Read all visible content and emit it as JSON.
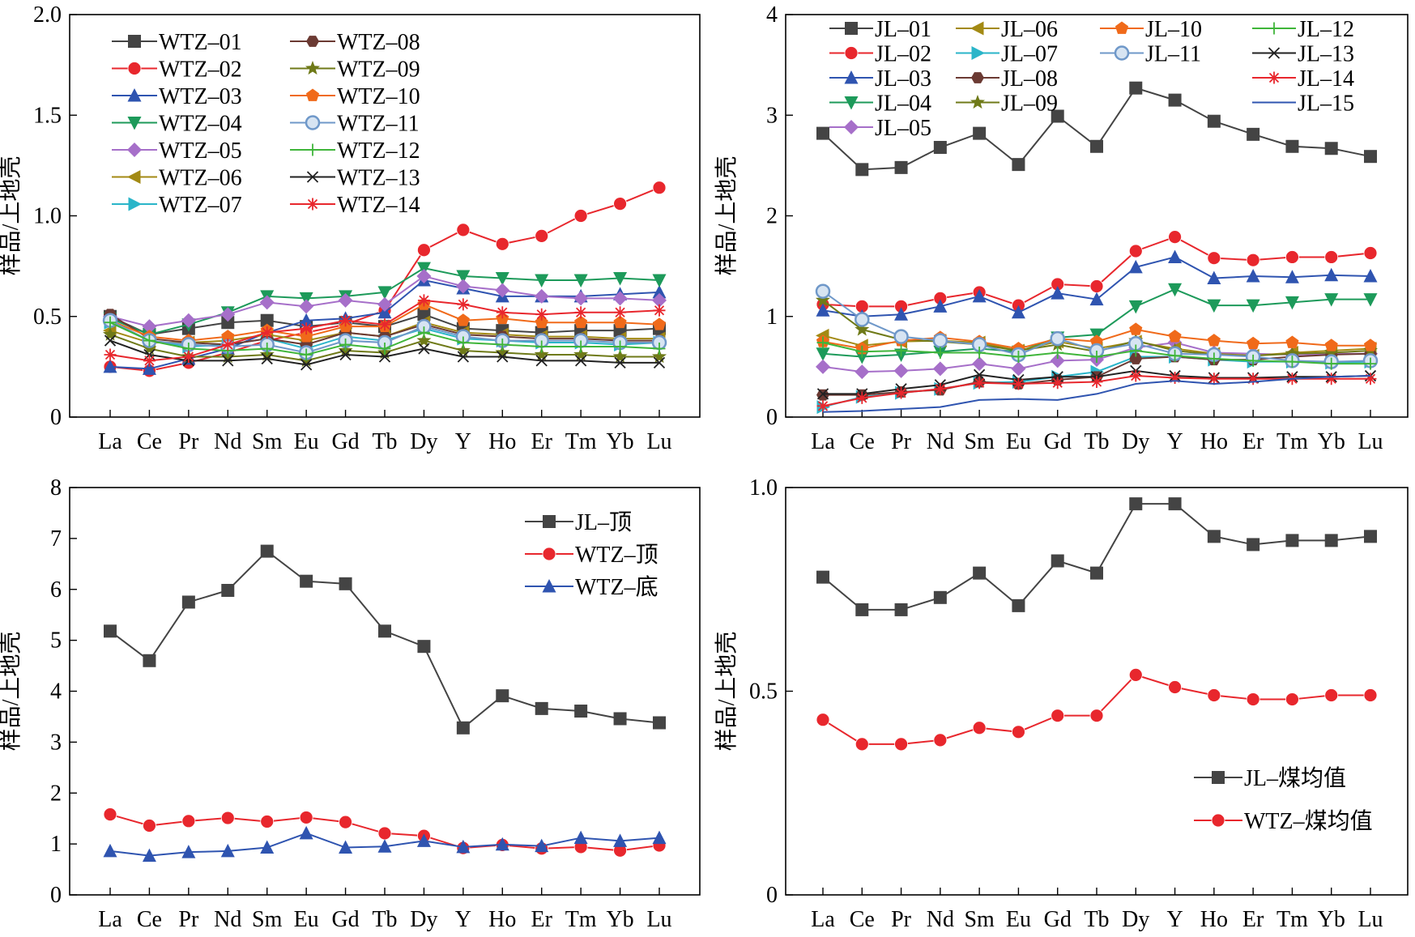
{
  "chart_data": [
    {
      "type": "line",
      "panel": "top-left",
      "ylabel": "样品/上地壳",
      "xlabel": "",
      "ylim": [
        0,
        2.0
      ],
      "yticks": [
        0,
        0.5,
        1.0,
        1.5,
        2.0
      ],
      "ytick_labels": [
        "0",
        "0.5",
        "1.0",
        "1.5",
        "2.0"
      ],
      "grid": false,
      "legend_position": "top-left",
      "categories": [
        "La",
        "Ce",
        "Pr",
        "Nd",
        "Sm",
        "Eu",
        "Gd",
        "Tb",
        "Dy",
        "Y",
        "Ho",
        "Er",
        "Tm",
        "Yb",
        "Lu"
      ],
      "series": [
        {
          "name": "WTZ–01",
          "color": "#444444",
          "marker": "square",
          "values": [
            0.5,
            0.41,
            0.44,
            0.47,
            0.48,
            0.45,
            0.47,
            0.45,
            0.51,
            0.44,
            0.43,
            0.42,
            0.43,
            0.43,
            0.44
          ]
        },
        {
          "name": "WTZ–02",
          "color": "#e8272d",
          "marker": "circle",
          "values": [
            0.25,
            0.23,
            0.27,
            0.32,
            0.38,
            0.42,
            0.46,
            0.53,
            0.83,
            0.93,
            0.86,
            0.9,
            1.0,
            1.06,
            1.14
          ]
        },
        {
          "name": "WTZ–03",
          "color": "#2f54b0",
          "marker": "triangle-up",
          "values": [
            0.25,
            0.24,
            0.29,
            0.34,
            0.42,
            0.48,
            0.49,
            0.52,
            0.68,
            0.64,
            0.6,
            0.6,
            0.6,
            0.61,
            0.62
          ]
        },
        {
          "name": "WTZ–04",
          "color": "#1d9a5a",
          "marker": "triangle-down",
          "values": [
            0.49,
            0.41,
            0.46,
            0.52,
            0.6,
            0.59,
            0.6,
            0.62,
            0.74,
            0.7,
            0.69,
            0.68,
            0.68,
            0.69,
            0.68
          ]
        },
        {
          "name": "WTZ–05",
          "color": "#a66fc9",
          "marker": "diamond",
          "values": [
            0.5,
            0.45,
            0.48,
            0.51,
            0.57,
            0.55,
            0.58,
            0.56,
            0.7,
            0.65,
            0.63,
            0.6,
            0.59,
            0.59,
            0.58
          ]
        },
        {
          "name": "WTZ–06",
          "color": "#a38a14",
          "marker": "triangle-left",
          "values": [
            0.43,
            0.37,
            0.37,
            0.38,
            0.41,
            0.38,
            0.42,
            0.4,
            0.47,
            0.42,
            0.41,
            0.4,
            0.4,
            0.39,
            0.39
          ]
        },
        {
          "name": "WTZ–07",
          "color": "#2ab5c9",
          "marker": "triangle-right",
          "values": [
            0.47,
            0.38,
            0.35,
            0.36,
            0.39,
            0.34,
            0.4,
            0.38,
            0.44,
            0.39,
            0.38,
            0.37,
            0.37,
            0.36,
            0.37
          ]
        },
        {
          "name": "WTZ–08",
          "color": "#6b3a33",
          "marker": "hexagon",
          "values": [
            0.51,
            0.39,
            0.37,
            0.36,
            0.39,
            0.36,
            0.42,
            0.4,
            0.46,
            0.41,
            0.4,
            0.39,
            0.39,
            0.38,
            0.38
          ]
        },
        {
          "name": "WTZ–09",
          "color": "#6f7a18",
          "marker": "star",
          "values": [
            0.41,
            0.34,
            0.3,
            0.3,
            0.31,
            0.28,
            0.33,
            0.32,
            0.38,
            0.33,
            0.32,
            0.31,
            0.31,
            0.3,
            0.3
          ]
        },
        {
          "name": "WTZ–10",
          "color": "#f06a1a",
          "marker": "pentagon",
          "values": [
            0.48,
            0.4,
            0.38,
            0.4,
            0.43,
            0.4,
            0.45,
            0.45,
            0.56,
            0.48,
            0.49,
            0.47,
            0.47,
            0.47,
            0.46
          ]
        },
        {
          "name": "WTZ–11",
          "color": "#6f98c9",
          "marker": "sphere",
          "values": [
            0.48,
            0.38,
            0.36,
            0.35,
            0.36,
            0.32,
            0.38,
            0.37,
            0.45,
            0.4,
            0.38,
            0.38,
            0.38,
            0.37,
            0.37
          ]
        },
        {
          "name": "WTZ–12",
          "color": "#3fb53a",
          "marker": "plus",
          "values": [
            0.47,
            0.38,
            0.34,
            0.33,
            0.34,
            0.31,
            0.36,
            0.34,
            0.42,
            0.37,
            0.36,
            0.35,
            0.35,
            0.35,
            0.34
          ]
        },
        {
          "name": "WTZ–13",
          "color": "#222222",
          "marker": "x",
          "values": [
            0.38,
            0.31,
            0.28,
            0.28,
            0.29,
            0.26,
            0.31,
            0.3,
            0.34,
            0.3,
            0.3,
            0.28,
            0.28,
            0.27,
            0.27
          ]
        },
        {
          "name": "WTZ–14",
          "color": "#e8272d",
          "marker": "asterisk",
          "values": [
            0.31,
            0.28,
            0.3,
            0.36,
            0.42,
            0.44,
            0.48,
            0.46,
            0.58,
            0.56,
            0.52,
            0.51,
            0.52,
            0.52,
            0.53
          ]
        }
      ]
    },
    {
      "type": "line",
      "panel": "top-right",
      "ylabel": "样品/上地壳",
      "xlabel": "",
      "ylim": [
        0,
        4
      ],
      "yticks": [
        0,
        1,
        2,
        3,
        4
      ],
      "ytick_labels": [
        "0",
        "1",
        "2",
        "3",
        "4"
      ],
      "grid": false,
      "legend_position": "top",
      "categories": [
        "La",
        "Ce",
        "Pr",
        "Nd",
        "Sm",
        "Eu",
        "Gd",
        "Tb",
        "Dy",
        "Y",
        "Ho",
        "Er",
        "Tm",
        "Yb",
        "Lu"
      ],
      "series": [
        {
          "name": "JL–01",
          "color": "#444444",
          "marker": "square",
          "values": [
            2.82,
            2.46,
            2.48,
            2.68,
            2.82,
            2.51,
            2.99,
            2.69,
            3.27,
            3.15,
            2.94,
            2.81,
            2.69,
            2.67,
            2.59
          ]
        },
        {
          "name": "JL–02",
          "color": "#e8272d",
          "marker": "circle",
          "values": [
            1.12,
            1.1,
            1.1,
            1.18,
            1.24,
            1.11,
            1.32,
            1.3,
            1.65,
            1.79,
            1.58,
            1.56,
            1.59,
            1.59,
            1.63
          ]
        },
        {
          "name": "JL–03",
          "color": "#2f54b0",
          "marker": "triangle-up",
          "values": [
            1.06,
            1.0,
            1.02,
            1.1,
            1.2,
            1.04,
            1.23,
            1.17,
            1.49,
            1.59,
            1.38,
            1.4,
            1.39,
            1.41,
            1.4
          ]
        },
        {
          "name": "JL–04",
          "color": "#1d9a5a",
          "marker": "triangle-down",
          "values": [
            0.63,
            0.6,
            0.62,
            0.65,
            0.68,
            0.65,
            0.79,
            0.82,
            1.1,
            1.27,
            1.11,
            1.11,
            1.14,
            1.17,
            1.17
          ]
        },
        {
          "name": "JL–05",
          "color": "#a66fc9",
          "marker": "diamond",
          "values": [
            0.5,
            0.45,
            0.46,
            0.48,
            0.53,
            0.48,
            0.56,
            0.57,
            0.69,
            0.74,
            0.64,
            0.63,
            0.62,
            0.63,
            0.63
          ]
        },
        {
          "name": "JL–06",
          "color": "#a38a14",
          "marker": "triangle-left",
          "values": [
            0.81,
            0.71,
            0.75,
            0.76,
            0.74,
            0.66,
            0.75,
            0.68,
            0.75,
            0.68,
            0.63,
            0.61,
            0.64,
            0.66,
            0.68
          ]
        },
        {
          "name": "JL–07",
          "color": "#2ab5c9",
          "marker": "triangle-right",
          "values": [
            0.1,
            0.2,
            0.24,
            0.28,
            0.34,
            0.35,
            0.4,
            0.45,
            0.6,
            0.6,
            0.57,
            0.55,
            0.55,
            0.54,
            0.55
          ]
        },
        {
          "name": "JL–08",
          "color": "#6b3a33",
          "marker": "hexagon",
          "values": [
            0.22,
            0.22,
            0.25,
            0.27,
            0.35,
            0.33,
            0.37,
            0.4,
            0.58,
            0.6,
            0.57,
            0.57,
            0.6,
            0.62,
            0.63
          ]
        },
        {
          "name": "JL–09",
          "color": "#6f7a18",
          "marker": "star",
          "values": [
            1.16,
            0.87,
            0.77,
            0.75,
            0.72,
            0.66,
            0.72,
            0.65,
            0.76,
            0.66,
            0.62,
            0.61,
            0.63,
            0.64,
            0.66
          ]
        },
        {
          "name": "JL–10",
          "color": "#f06a1a",
          "marker": "pentagon",
          "values": [
            0.75,
            0.68,
            0.76,
            0.79,
            0.75,
            0.68,
            0.78,
            0.75,
            0.87,
            0.8,
            0.76,
            0.73,
            0.74,
            0.71,
            0.71
          ]
        },
        {
          "name": "JL–11",
          "color": "#6f98c9",
          "marker": "sphere",
          "values": [
            1.25,
            0.97,
            0.8,
            0.76,
            0.72,
            0.62,
            0.78,
            0.66,
            0.73,
            0.63,
            0.62,
            0.6,
            0.56,
            0.55,
            0.56
          ]
        },
        {
          "name": "JL–12",
          "color": "#3fb53a",
          "marker": "plus",
          "values": [
            0.74,
            0.65,
            0.66,
            0.64,
            0.64,
            0.6,
            0.64,
            0.6,
            0.66,
            0.61,
            0.58,
            0.56,
            0.55,
            0.53,
            0.53
          ]
        },
        {
          "name": "JL–13",
          "color": "#222222",
          "marker": "x",
          "values": [
            0.23,
            0.23,
            0.28,
            0.32,
            0.42,
            0.37,
            0.4,
            0.4,
            0.46,
            0.41,
            0.39,
            0.39,
            0.4,
            0.4,
            0.41
          ]
        },
        {
          "name": "JL–14",
          "color": "#e8272d",
          "marker": "asterisk",
          "values": [
            0.11,
            0.19,
            0.24,
            0.28,
            0.34,
            0.33,
            0.34,
            0.35,
            0.41,
            0.39,
            0.38,
            0.38,
            0.38,
            0.38,
            0.38
          ]
        },
        {
          "name": "JL–15",
          "color": "#2f54b0",
          "marker": "none",
          "values": [
            0.05,
            0.06,
            0.08,
            0.1,
            0.17,
            0.18,
            0.17,
            0.23,
            0.33,
            0.36,
            0.33,
            0.35,
            0.38,
            0.4,
            0.41
          ]
        }
      ]
    },
    {
      "type": "line",
      "panel": "bottom-left",
      "ylabel": "样品/上地壳",
      "xlabel": "",
      "ylim": [
        0,
        8
      ],
      "yticks": [
        0,
        1,
        2,
        3,
        4,
        5,
        6,
        7,
        8
      ],
      "ytick_labels": [
        "0",
        "1",
        "2",
        "3",
        "4",
        "5",
        "6",
        "7",
        "8"
      ],
      "grid": false,
      "legend_position": "top-right",
      "categories": [
        "La",
        "Ce",
        "Pr",
        "Nd",
        "Sm",
        "Eu",
        "Gd",
        "Tb",
        "Dy",
        "Y",
        "Ho",
        "Er",
        "Tm",
        "Yb",
        "Lu"
      ],
      "series": [
        {
          "name": "JL–顶",
          "color": "#444444",
          "marker": "square",
          "values": [
            5.18,
            4.6,
            5.75,
            5.98,
            6.75,
            6.16,
            6.11,
            5.18,
            4.88,
            3.28,
            3.91,
            3.66,
            3.61,
            3.46,
            3.38
          ]
        },
        {
          "name": "WTZ–顶",
          "color": "#e8272d",
          "marker": "circle",
          "values": [
            1.58,
            1.36,
            1.45,
            1.51,
            1.44,
            1.52,
            1.43,
            1.21,
            1.16,
            0.92,
            0.98,
            0.91,
            0.94,
            0.87,
            0.97
          ]
        },
        {
          "name": "WTZ–底",
          "color": "#2f54b0",
          "marker": "triangle-up",
          "values": [
            0.86,
            0.77,
            0.84,
            0.86,
            0.93,
            1.21,
            0.93,
            0.95,
            1.06,
            0.94,
            0.99,
            0.96,
            1.12,
            1.06,
            1.12
          ]
        }
      ]
    },
    {
      "type": "line",
      "panel": "bottom-right",
      "ylabel": "样品/上地壳",
      "xlabel": "",
      "ylim": [
        0,
        1.0
      ],
      "yticks": [
        0,
        0.5,
        1.0
      ],
      "ytick_labels": [
        "0",
        "0.5",
        "1.0"
      ],
      "grid": false,
      "legend_position": "bottom-right",
      "categories": [
        "La",
        "Ce",
        "Pr",
        "Nd",
        "Sm",
        "Eu",
        "Gd",
        "Tb",
        "Dy",
        "Y",
        "Ho",
        "Er",
        "Tm",
        "Yb",
        "Lu"
      ],
      "series": [
        {
          "name": "JL–煤均值",
          "color": "#444444",
          "marker": "square",
          "values": [
            0.78,
            0.7,
            0.7,
            0.73,
            0.79,
            0.71,
            0.82,
            0.79,
            0.96,
            0.96,
            0.88,
            0.86,
            0.87,
            0.87,
            0.88
          ]
        },
        {
          "name": "WTZ–煤均值",
          "color": "#e8272d",
          "marker": "circle",
          "values": [
            0.43,
            0.37,
            0.37,
            0.38,
            0.41,
            0.4,
            0.44,
            0.44,
            0.54,
            0.51,
            0.49,
            0.48,
            0.48,
            0.49,
            0.49
          ]
        }
      ]
    }
  ]
}
